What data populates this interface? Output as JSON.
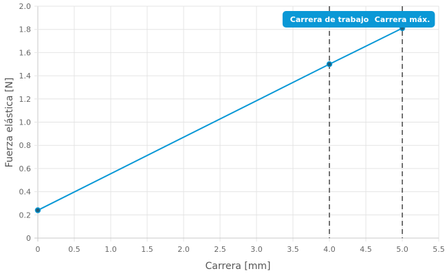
{
  "chart_data": {
    "type": "line",
    "title": "",
    "xlabel": "Carrera [mm]",
    "ylabel": "Fuerza elástica [N]",
    "xlim": [
      0,
      5.5
    ],
    "ylim": [
      0,
      2.0
    ],
    "xticks": [
      "0",
      "0.5",
      "1.0",
      "1.5",
      "2.0",
      "2.5",
      "3.0",
      "3.5",
      "4.0",
      "4.5",
      "5.0",
      "5.5"
    ],
    "yticks": [
      "0",
      "0.2",
      "0.4",
      "0.6",
      "0.8",
      "1.0",
      "1.2",
      "1.4",
      "1.6",
      "1.8",
      "2.0"
    ],
    "grid": true,
    "series": [
      {
        "x": [
          0,
          4,
          5
        ],
        "y": [
          0.24,
          1.5,
          1.81
        ],
        "color": "#0a98d6"
      }
    ],
    "annotations": [
      {
        "x": 4,
        "label": "Carrera de trabajo",
        "color": "#0a98d6"
      },
      {
        "x": 5,
        "label": "Carrera máx.",
        "color": "#0a98d6"
      }
    ]
  }
}
